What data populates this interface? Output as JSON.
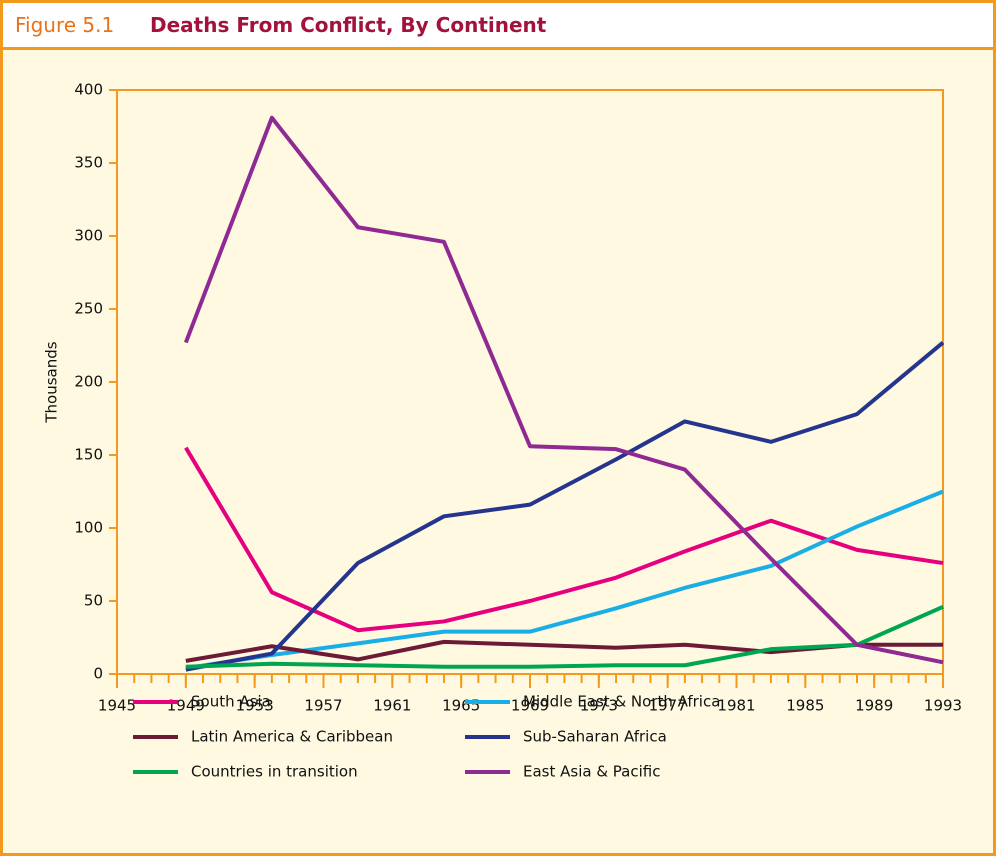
{
  "figure_label": "Figure 5.1",
  "chart_data": {
    "type": "line",
    "title": "Deaths From Conflict, By Continent",
    "y_label": "Thousands",
    "x": [
      1949,
      1954,
      1959,
      1964,
      1969,
      1974,
      1978,
      1983,
      1988,
      1993
    ],
    "xlim": [
      1945,
      1993
    ],
    "xticks": [
      1945,
      1949,
      1953,
      1957,
      1961,
      1965,
      1969,
      1973,
      1977,
      1981,
      1985,
      1989,
      1993
    ],
    "ylim": [
      0,
      400
    ],
    "yticks": [
      0,
      50,
      100,
      150,
      200,
      250,
      300,
      350,
      400
    ],
    "series": [
      {
        "name": "South Asia",
        "color": "#e6007e",
        "values": [
          155,
          56,
          30,
          36,
          50,
          66,
          84,
          105,
          85,
          76
        ]
      },
      {
        "name": "Middle East & North Africa",
        "color": "#19aee6",
        "values": [
          4,
          13,
          21,
          29,
          29,
          45,
          59,
          74,
          101,
          125
        ]
      },
      {
        "name": "Latin America & Caribbean",
        "color": "#6d1a36",
        "values": [
          9,
          19,
          10,
          22,
          20,
          18,
          20,
          15,
          20,
          20
        ]
      },
      {
        "name": "Sub-Saharan Africa",
        "color": "#25358e",
        "values": [
          3,
          14,
          76,
          108,
          116,
          147,
          173,
          159,
          178,
          227
        ]
      },
      {
        "name": "Countries in transition",
        "color": "#00a551",
        "values": [
          5,
          7,
          6,
          5,
          5,
          6,
          6,
          17,
          20,
          46
        ]
      },
      {
        "name": "East Asia & Pacific",
        "color": "#8e2a91",
        "values": [
          227,
          381,
          306,
          296,
          156,
          154,
          140,
          79,
          20,
          8
        ]
      }
    ]
  }
}
